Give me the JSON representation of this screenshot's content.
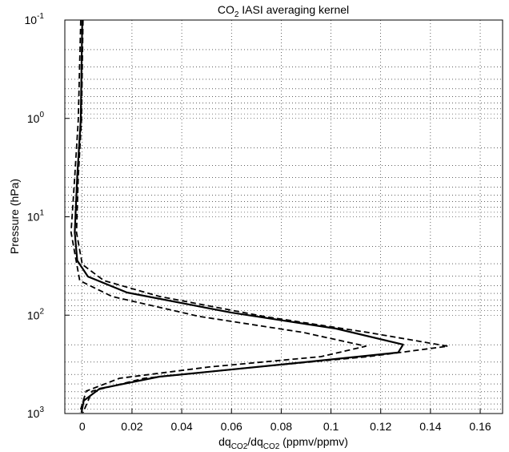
{
  "chart_data": {
    "type": "line",
    "title": [
      {
        "text": "CO"
      },
      {
        "text": "2",
        "sub": true
      },
      {
        "text": " IASI averaging kernel"
      }
    ],
    "xlabel": [
      {
        "text": "dq"
      },
      {
        "text": "CO2",
        "sub": true
      },
      {
        "text": "/dq"
      },
      {
        "text": "CO2",
        "sub": true
      },
      {
        "text": " (ppmv/ppmv)"
      }
    ],
    "ylabel": "Pressure (hPa)",
    "xlim": [
      -0.007,
      0.169
    ],
    "xticks": [
      0,
      0.02,
      0.04,
      0.06,
      0.08,
      0.1,
      0.12,
      0.14,
      0.16
    ],
    "ylim": [
      0.1,
      1000
    ],
    "yscale": "log",
    "y_direction": "reverse",
    "yticks": [
      {
        "value": 0.1,
        "label": "10",
        "exponent": "-1"
      },
      {
        "value": 1,
        "label": "10",
        "exponent": "0"
      },
      {
        "value": 10,
        "label": "10",
        "exponent": "1"
      },
      {
        "value": 100,
        "label": "10",
        "exponent": "2"
      },
      {
        "value": 1000,
        "label": "10",
        "exponent": "3"
      }
    ],
    "yminorticks": [
      0.2,
      0.3,
      0.4,
      0.5,
      0.6,
      0.7,
      0.8,
      0.9,
      2,
      3,
      4,
      5,
      6,
      7,
      8,
      9,
      20,
      30,
      40,
      50,
      60,
      70,
      80,
      90,
      200,
      300,
      400,
      500,
      600,
      700,
      800,
      900
    ],
    "grid": true,
    "series": [
      {
        "color": "#000000",
        "style": "solid",
        "x": [
          0,
          -0.0006,
          -0.002,
          -0.003,
          -0.002,
          0.0023,
          0.018,
          0.06,
          0.102,
          0.129,
          0.127,
          0.08,
          0.031,
          0.007,
          0.0006,
          -0.0003
        ],
        "y": [
          0.1,
          1.04,
          3.9,
          14.4,
          27.8,
          40.5,
          58.9,
          94.2,
          137,
          199,
          240,
          318,
          422,
          559,
          741,
          980
        ]
      },
      {
        "color": "#000000",
        "style": "dashed",
        "x": [
          0.0003,
          -0.0003,
          -0.0016,
          -0.0023,
          0,
          0.0087,
          0.0312,
          0.073,
          0.115,
          0.147,
          0.115,
          0.07,
          0.025,
          0.004,
          0.0003
        ],
        "y": [
          0.1,
          1.04,
          3.9,
          14.4,
          30.5,
          44.5,
          64.7,
          103,
          150,
          207,
          264,
          336,
          438,
          591,
          980
        ]
      },
      {
        "color": "#000000",
        "style": "dashed",
        "x": [
          -0.0006,
          -0.0016,
          -0.003,
          -0.0045,
          -0.001,
          0.012,
          0.047,
          0.089,
          0.114,
          0.096,
          0.051,
          0.015,
          0.0016,
          -0.001
        ],
        "y": [
          0.1,
          1.04,
          3.9,
          14.4,
          44.5,
          64.7,
          103,
          150,
          207,
          264,
          336,
          438,
          591,
          980
        ]
      }
    ]
  }
}
